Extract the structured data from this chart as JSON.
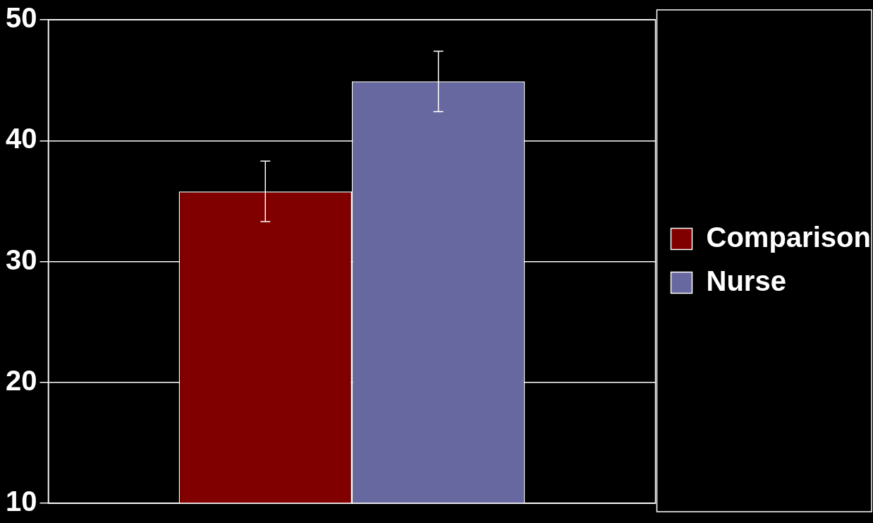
{
  "chart_data": {
    "type": "bar",
    "categories": [
      null
    ],
    "series": [
      {
        "name": "Comparison",
        "color": "#800000",
        "values": [
          35.8
        ],
        "errors": [
          2.5
        ]
      },
      {
        "name": "Nurse",
        "color": "#6868a0",
        "values": [
          44.9
        ],
        "errors": [
          2.5
        ]
      }
    ],
    "ylim": [
      10,
      50
    ],
    "yticks": [
      10,
      20,
      30,
      40,
      50
    ],
    "grid": "y",
    "legend": "right",
    "tick_labels": "y"
  }
}
